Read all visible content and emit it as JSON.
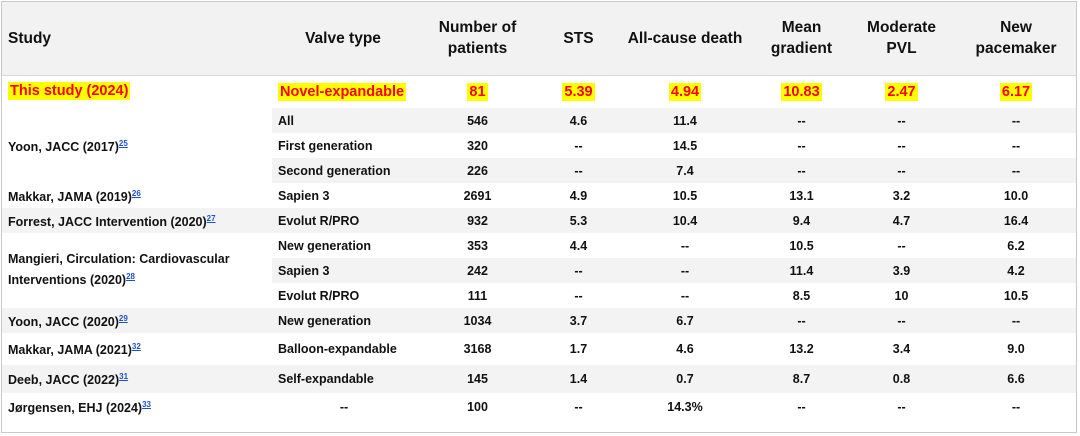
{
  "headers": {
    "study": "Study",
    "valve_type": "Valve type",
    "patients_line1": "Number of",
    "patients_line2": "patients",
    "sts": "STS",
    "death": "All-cause death",
    "gradient_line1": "Mean",
    "gradient_line2": "gradient",
    "pvl_line1": "Moderate",
    "pvl_line2": "PVL",
    "pacemaker_line1": "New",
    "pacemaker_line2": "pacemaker"
  },
  "highlight_row": {
    "study": "This study (2024)",
    "valve_type": "Novel-expandable",
    "patients": "81",
    "sts": "5.39",
    "death": "4.94",
    "gradient": "10.83",
    "pvl": "2.47",
    "pacemaker": "6.17"
  },
  "studies": {
    "yoon2017": {
      "name": "Yoon, JACC (2017)",
      "ref": "25"
    },
    "makkar2019": {
      "name": "Makkar, JAMA (2019)",
      "ref": "26"
    },
    "forrest2020": {
      "name": "Forrest, JACC Intervention (2020)",
      "ref": "27"
    },
    "mangieri2020": {
      "name_line1": "Mangieri, Circulation: Cardiovascular",
      "name_line2": "Interventions (2020)",
      "ref": "28"
    },
    "yoon2020": {
      "name": "Yoon, JACC (2020)",
      "ref": "29"
    },
    "makkar2021": {
      "name": "Makkar, JAMA (2021)",
      "ref": "32"
    },
    "deeb2022": {
      "name": "Deeb, JACC (2022)",
      "ref": "31"
    },
    "jorgensen2024": {
      "name": "Jørgensen, EHJ (2024)",
      "ref": "33"
    }
  },
  "rows": [
    {
      "valve_type": "All",
      "patients": "546",
      "sts": "4.6",
      "death": "11.4",
      "gradient": "--",
      "pvl": "--",
      "pacemaker": "--"
    },
    {
      "valve_type": "First generation",
      "patients": "320",
      "sts": "--",
      "death": "14.5",
      "gradient": "--",
      "pvl": "--",
      "pacemaker": "--"
    },
    {
      "valve_type": "Second generation",
      "patients": "226",
      "sts": "--",
      "death": "7.4",
      "gradient": "--",
      "pvl": "--",
      "pacemaker": "--"
    },
    {
      "valve_type": "Sapien 3",
      "patients": "2691",
      "sts": "4.9",
      "death": "10.5",
      "gradient": "13.1",
      "pvl": "3.2",
      "pacemaker": "10.0"
    },
    {
      "valve_type": "Evolut R/PRO",
      "patients": "932",
      "sts": "5.3",
      "death": "10.4",
      "gradient": "9.4",
      "pvl": "4.7",
      "pacemaker": "16.4"
    },
    {
      "valve_type": "New generation",
      "patients": "353",
      "sts": "4.4",
      "death": "--",
      "gradient": "10.5",
      "pvl": "--",
      "pacemaker": "6.2"
    },
    {
      "valve_type": "Sapien 3",
      "patients": "242",
      "sts": "--",
      "death": "--",
      "gradient": "11.4",
      "pvl": "3.9",
      "pacemaker": "4.2"
    },
    {
      "valve_type": "Evolut R/PRO",
      "patients": "111",
      "sts": "--",
      "death": "--",
      "gradient": "8.5",
      "pvl": "10",
      "pacemaker": "10.5"
    },
    {
      "valve_type": "New generation",
      "patients": "1034",
      "sts": "3.7",
      "death": "6.7",
      "gradient": "--",
      "pvl": "--",
      "pacemaker": "--"
    },
    {
      "valve_type": "Balloon-expandable",
      "patients": "3168",
      "sts": "1.7",
      "death": "4.6",
      "gradient": "13.2",
      "pvl": "3.4",
      "pacemaker": "9.0"
    },
    {
      "valve_type": "Self-expandable",
      "patients": "145",
      "sts": "1.4",
      "death": "0.7",
      "gradient": "8.7",
      "pvl": "0.8",
      "pacemaker": "6.6"
    },
    {
      "valve_type": "--",
      "patients": "100",
      "sts": "--",
      "death": "14.3%",
      "gradient": "--",
      "pvl": "--",
      "pacemaker": "--"
    }
  ],
  "colors": {
    "highlight_bg": "#ffff00",
    "highlight_text": "#ff0000",
    "ref_link": "#1f4fd6",
    "header_bg": "#f2f2f2",
    "stripe_bg": "#f3f3f3"
  }
}
